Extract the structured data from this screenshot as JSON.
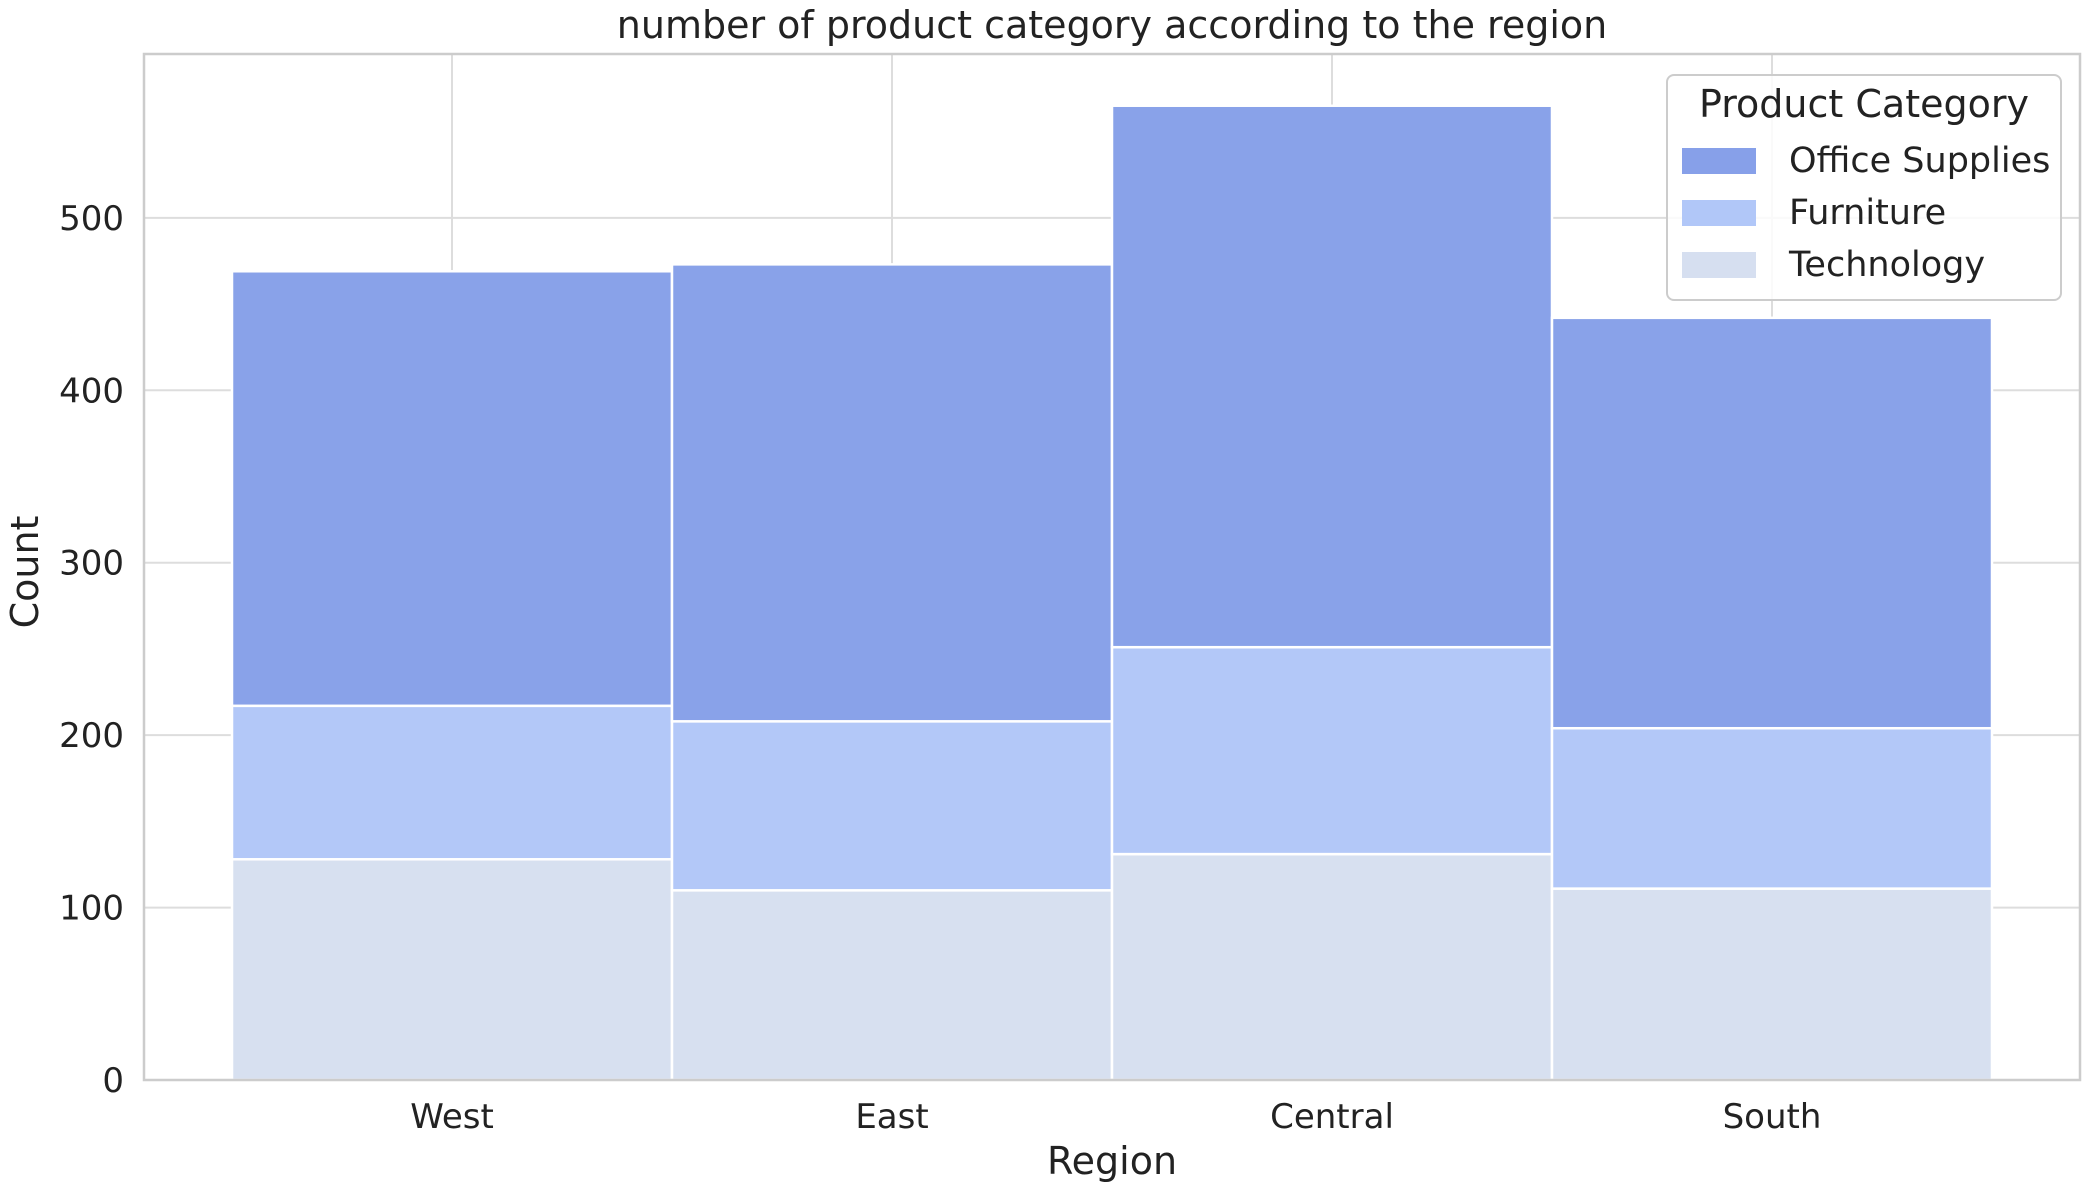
{
  "chart_data": {
    "type": "bar",
    "stacked": true,
    "title": "number of product category according to the region",
    "xlabel": "Region",
    "ylabel": "Count",
    "categories": [
      "West",
      "East",
      "Central",
      "South"
    ],
    "series": [
      {
        "name": "Technology",
        "values": [
          128,
          110,
          131,
          111
        ],
        "color": "#d6dff0"
      },
      {
        "name": "Furniture",
        "values": [
          89,
          98,
          120,
          93
        ],
        "color": "#b1c7f8"
      },
      {
        "name": "Office Supplies",
        "values": [
          252,
          265,
          314,
          238
        ],
        "color": "#87a0e9"
      }
    ],
    "ylim": [
      0,
      595
    ],
    "yticks": [
      "0",
      "100",
      "200",
      "300",
      "400",
      "500"
    ],
    "grid": true,
    "legend": {
      "title": "Product Category",
      "placement": "top-right",
      "entries": [
        "Office Supplies",
        "Furniture",
        "Technology"
      ]
    }
  }
}
